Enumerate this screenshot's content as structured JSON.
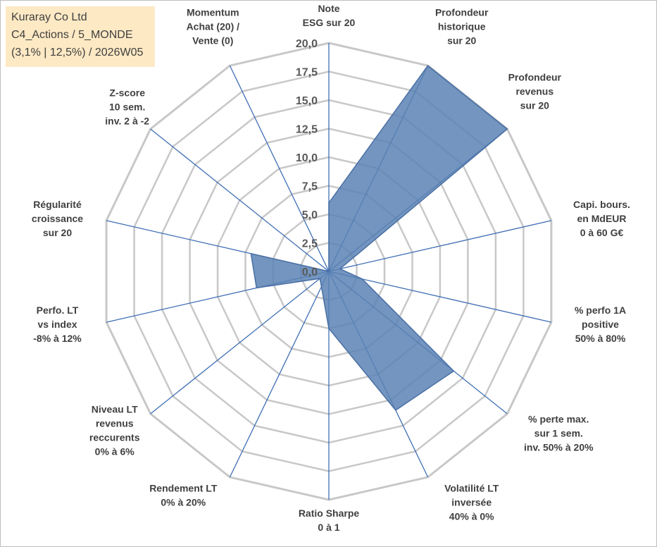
{
  "info_box": {
    "line1": "Kuraray Co Ltd",
    "line2": "C4_Actions / 5_MONDE",
    "line3": "(3,1% | 12,5%) / 2026W05"
  },
  "colors": {
    "fill": "#5b82b4",
    "stroke": "#4a6fa5",
    "grid": "#c8c8c8",
    "spoke": "#3f6fb5",
    "info_bg": "#fde9c4"
  },
  "chart_data": {
    "type": "radar",
    "rlim": [
      0,
      20
    ],
    "tick_step": 2.5,
    "tick_labels": [
      "0,0",
      "2,5",
      "5,0",
      "7,5",
      "10,0",
      "12,5",
      "15,0",
      "17,5",
      "20,0"
    ],
    "grid": true,
    "axes": [
      {
        "label": [
          "Note",
          "ESG sur 20"
        ],
        "value": 6.0
      },
      {
        "label": [
          "Profondeur",
          "historique",
          "sur 20"
        ],
        "value": 20.0
      },
      {
        "label": [
          "Profondeur",
          "revenus",
          "sur 20"
        ],
        "value": 20.0
      },
      {
        "label": [
          "Capi. bours.",
          "en MdEUR",
          "0 à 60 G€"
        ],
        "value": 1.0
      },
      {
        "label": [
          "% perfo 1A",
          "positive",
          "50% à 80%"
        ],
        "value": 3.0
      },
      {
        "label": [
          "% perte max.",
          "sur 1 sem.",
          "inv. 50% à 20%"
        ],
        "value": 14.0
      },
      {
        "label": [
          "Volatilité LT",
          "inversée",
          "40% à 0%"
        ],
        "value": 13.5
      },
      {
        "label": [
          "Ratio Sharpe",
          "0 à 1"
        ],
        "value": 5.0
      },
      {
        "label": [
          "Rendement LT",
          "0% à 20%"
        ],
        "value": 1.5
      },
      {
        "label": [
          "Niveau LT",
          "revenus",
          "reccurents",
          "0% à 6%"
        ],
        "value": 1.0
      },
      {
        "label": [
          "Perfo. LT",
          "vs index",
          "-8% à 12%"
        ],
        "value": 6.5
      },
      {
        "label": [
          "Régularité",
          "croissance",
          "sur 20"
        ],
        "value": 7.0
      },
      {
        "label": [
          "Z-score",
          "10 sem.",
          "inv. 2 à -2"
        ],
        "value": 0.0
      },
      {
        "label": [
          "Momentum",
          "Achat (20) /",
          "Vente (0)"
        ],
        "value": 0.0
      }
    ]
  }
}
